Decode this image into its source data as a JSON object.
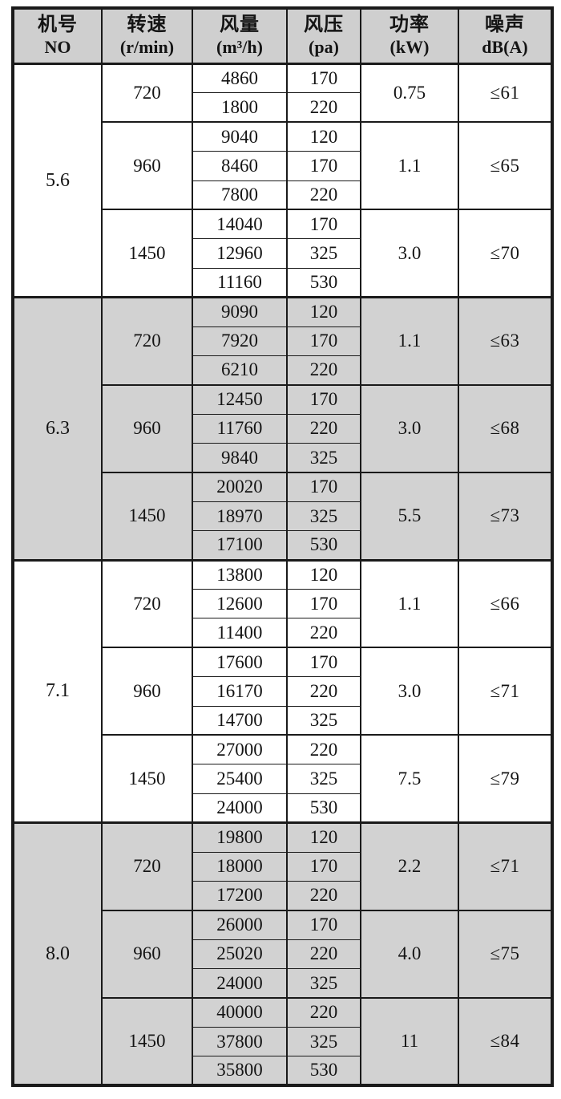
{
  "table": {
    "header": {
      "columns": [
        {
          "key": "no",
          "zh": "机号",
          "en": "NO"
        },
        {
          "key": "rpm",
          "zh": "转速",
          "en": "(r/min)"
        },
        {
          "key": "airflow",
          "zh": "风量",
          "en": "(m³/h)"
        },
        {
          "key": "pressure",
          "zh": "风压",
          "en": "(pa)"
        },
        {
          "key": "power",
          "zh": "功率",
          "en": "(kW)"
        },
        {
          "key": "noise",
          "zh": "噪声",
          "en": "dB(A)"
        }
      ]
    },
    "sections": [
      {
        "no": "5.6",
        "shaded": false,
        "groups": [
          {
            "rpm": "720",
            "rows": [
              [
                "4860",
                "170"
              ],
              [
                "1800",
                "220"
              ]
            ],
            "power": "0.75",
            "noise": "≤61"
          },
          {
            "rpm": "960",
            "rows": [
              [
                "9040",
                "120"
              ],
              [
                "8460",
                "170"
              ],
              [
                "7800",
                "220"
              ]
            ],
            "power": "1.1",
            "noise": "≤65"
          },
          {
            "rpm": "1450",
            "rows": [
              [
                "14040",
                "170"
              ],
              [
                "12960",
                "325"
              ],
              [
                "11160",
                "530"
              ]
            ],
            "power": "3.0",
            "noise": "≤70"
          }
        ]
      },
      {
        "no": "6.3",
        "shaded": true,
        "groups": [
          {
            "rpm": "720",
            "rows": [
              [
                "9090",
                "120"
              ],
              [
                "7920",
                "170"
              ],
              [
                "6210",
                "220"
              ]
            ],
            "power": "1.1",
            "noise": "≤63"
          },
          {
            "rpm": "960",
            "rows": [
              [
                "12450",
                "170"
              ],
              [
                "11760",
                "220"
              ],
              [
                "9840",
                "325"
              ]
            ],
            "power": "3.0",
            "noise": "≤68"
          },
          {
            "rpm": "1450",
            "rows": [
              [
                "20020",
                "170"
              ],
              [
                "18970",
                "325"
              ],
              [
                "17100",
                "530"
              ]
            ],
            "power": "5.5",
            "noise": "≤73"
          }
        ]
      },
      {
        "no": "7.1",
        "shaded": false,
        "groups": [
          {
            "rpm": "720",
            "rows": [
              [
                "13800",
                "120"
              ],
              [
                "12600",
                "170"
              ],
              [
                "11400",
                "220"
              ]
            ],
            "power": "1.1",
            "noise": "≤66"
          },
          {
            "rpm": "960",
            "rows": [
              [
                "17600",
                "170"
              ],
              [
                "16170",
                "220"
              ],
              [
                "14700",
                "325"
              ]
            ],
            "power": "3.0",
            "noise": "≤71"
          },
          {
            "rpm": "1450",
            "rows": [
              [
                "27000",
                "220"
              ],
              [
                "25400",
                "325"
              ],
              [
                "24000",
                "530"
              ]
            ],
            "power": "7.5",
            "noise": "≤79"
          }
        ]
      },
      {
        "no": "8.0",
        "shaded": true,
        "groups": [
          {
            "rpm": "720",
            "rows": [
              [
                "19800",
                "120"
              ],
              [
                "18000",
                "170"
              ],
              [
                "17200",
                "220"
              ]
            ],
            "power": "2.2",
            "noise": "≤71"
          },
          {
            "rpm": "960",
            "rows": [
              [
                "26000",
                "170"
              ],
              [
                "25020",
                "220"
              ],
              [
                "24000",
                "325"
              ]
            ],
            "power": "4.0",
            "noise": "≤75"
          },
          {
            "rpm": "1450",
            "rows": [
              [
                "40000",
                "220"
              ],
              [
                "37800",
                "325"
              ],
              [
                "35800",
                "530"
              ]
            ],
            "power": "11",
            "noise": "≤84"
          }
        ]
      }
    ]
  },
  "colors": {
    "header_bg": "#cfcfcf",
    "shaded_section_bg": "#d2d2d2",
    "plain_section_bg": "#ffffff",
    "border": "#1a1a1a",
    "text": "#141414"
  }
}
